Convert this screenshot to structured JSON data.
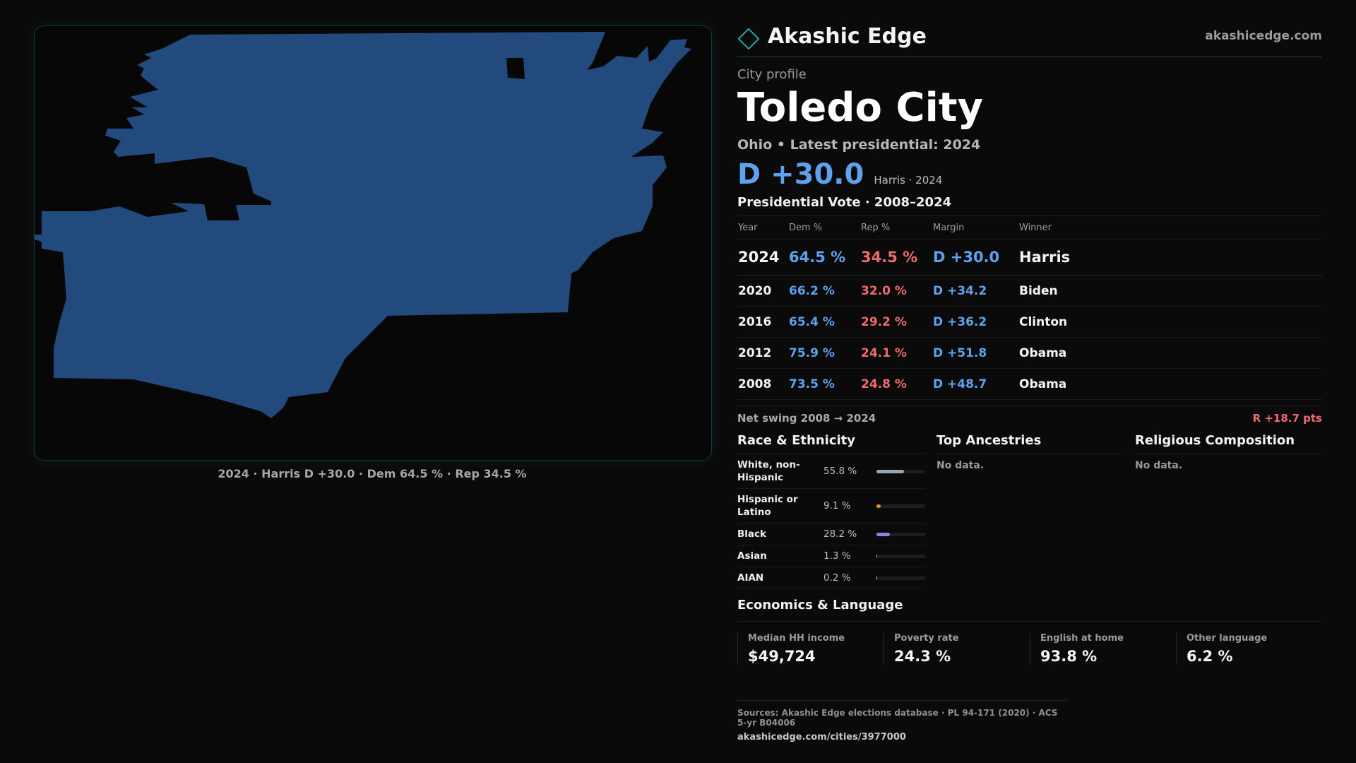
{
  "map": {
    "fill": "#224a7c",
    "caption": "2024 · Harris D +30.0 · Dem 64.5 % · Rep 34.5 %"
  },
  "brand": {
    "name": "Akashic Edge",
    "url": "akashicedge.com",
    "accent": "#27a6a5"
  },
  "profile": {
    "kicker": "City profile",
    "title": "Toledo City",
    "subtitle": "Ohio • Latest presidential: 2024",
    "headline_margin": "D +30.0",
    "headline_note": "Harris · 2024"
  },
  "vote": {
    "title": "Presidential Vote · 2008–2024",
    "headers": {
      "year": "Year",
      "dem": "Dem %",
      "rep": "Rep %",
      "margin": "Margin",
      "winner": "Winner"
    },
    "rows": [
      {
        "year": "2024",
        "dem": "64.5 %",
        "rep": "34.5 %",
        "margin": "D +30.0",
        "winner": "Harris"
      },
      {
        "year": "2020",
        "dem": "66.2 %",
        "rep": "32.0 %",
        "margin": "D +34.2",
        "winner": "Biden"
      },
      {
        "year": "2016",
        "dem": "65.4 %",
        "rep": "29.2 %",
        "margin": "D +36.2",
        "winner": "Clinton"
      },
      {
        "year": "2012",
        "dem": "75.9 %",
        "rep": "24.1 %",
        "margin": "D +51.8",
        "winner": "Obama"
      },
      {
        "year": "2008",
        "dem": "73.5 %",
        "rep": "24.8 %",
        "margin": "D +48.7",
        "winner": "Obama"
      }
    ],
    "swing_label": "Net swing 2008 → 2024",
    "swing_value": "R +18.7 pts",
    "dem_color": "#5ea2ee",
    "rep_color": "#ef6b6b"
  },
  "race": {
    "title": "Race & Ethnicity",
    "rows": [
      {
        "label": "White, non-Hispanic",
        "pct": "55.8 %",
        "value": 55.8,
        "color": "#9aa3b0"
      },
      {
        "label": "Hispanic or Latino",
        "pct": "9.1 %",
        "value": 9.1,
        "color": "#e2932b"
      },
      {
        "label": "Black",
        "pct": "28.2 %",
        "value": 28.2,
        "color": "#9a7ce6"
      },
      {
        "label": "Asian",
        "pct": "1.3 %",
        "value": 1.3,
        "color": "#3fbcb4"
      },
      {
        "label": "AIAN",
        "pct": "0.2 %",
        "value": 0.2,
        "color": "#c0c0c0"
      }
    ]
  },
  "ancestries": {
    "title": "Top Ancestries",
    "empty": "No data."
  },
  "religion": {
    "title": "Religious Composition",
    "empty": "No data."
  },
  "economics": {
    "title": "Economics & Language",
    "stats": [
      {
        "label": "Median HH income",
        "value": "$49,724"
      },
      {
        "label": "Poverty rate",
        "value": "24.3 %"
      },
      {
        "label": "English at home",
        "value": "93.8 %"
      },
      {
        "label": "Other language",
        "value": "6.2 %"
      }
    ]
  },
  "footer": {
    "sources": "Sources: Akashic Edge elections database · PL 94-171 (2020) · ACS 5-yr B04006",
    "url": "akashicedge.com/cities/3977000"
  }
}
